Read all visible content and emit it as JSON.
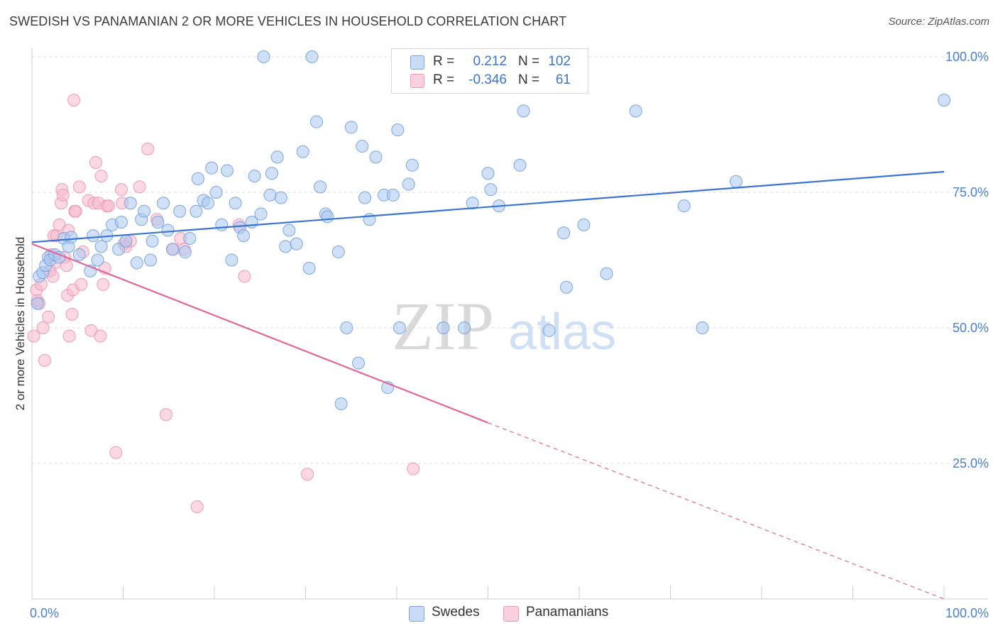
{
  "title": "SWEDISH VS PANAMANIAN 2 OR MORE VEHICLES IN HOUSEHOLD CORRELATION CHART",
  "source": "Source: ZipAtlas.com",
  "watermark": {
    "zip": "ZIP",
    "atlas": "atlas"
  },
  "legend": {
    "rows": [
      {
        "r_label": "R =",
        "r_value": "0.212",
        "n_label": "N =",
        "n_value": "102",
        "color": "#a9c8f0"
      },
      {
        "r_label": "R =",
        "r_value": "-0.346",
        "n_label": "N =",
        "n_value": "61",
        "color": "#f7b8cb"
      }
    ]
  },
  "bottom_legend": [
    {
      "label": "Swedes",
      "color": "#a9c8f0"
    },
    {
      "label": "Panamanians",
      "color": "#f7b8cb"
    }
  ],
  "colors": {
    "blue": "#3a74d0",
    "blue_fill": "#a9c8f0",
    "pink": "#e0679a",
    "pink_fill": "#f7b8cb",
    "grid": "#dddddd",
    "tick_text": "#4a7fd1"
  },
  "chart_data": {
    "type": "scatter",
    "title": "SWEDISH VS PANAMANIAN 2 OR MORE VEHICLES IN HOUSEHOLD CORRELATION CHART",
    "xlabel": "",
    "ylabel": "2 or more Vehicles in Household",
    "xlim": [
      0,
      100
    ],
    "ylim": [
      0,
      102
    ],
    "x_tick_labels": [
      "0.0%",
      "100.0%"
    ],
    "y_ticks": [
      25,
      50,
      75,
      100
    ],
    "y_tick_labels": [
      "25.0%",
      "50.0%",
      "75.0%",
      "100.0%"
    ],
    "grid": "horizontal dashed",
    "legend_position": "top-center",
    "series": [
      {
        "name": "Swedes",
        "r": 0.212,
        "n": 102,
        "trend": {
          "x": [
            0,
            100
          ],
          "y": [
            65.8,
            78.8
          ]
        },
        "points": [
          [
            0.6,
            54.5
          ],
          [
            0.8,
            59.5
          ],
          [
            1.2,
            60.2
          ],
          [
            1.5,
            61.5
          ],
          [
            1.8,
            63
          ],
          [
            2.0,
            62.5
          ],
          [
            2.5,
            63.5
          ],
          [
            3.0,
            63
          ],
          [
            3.5,
            66.5
          ],
          [
            4.0,
            65
          ],
          [
            4.3,
            66.7
          ],
          [
            5.2,
            63.5
          ],
          [
            6.4,
            60.5
          ],
          [
            6.7,
            67
          ],
          [
            7.2,
            62.5
          ],
          [
            7.6,
            65
          ],
          [
            8.2,
            67
          ],
          [
            8.8,
            69
          ],
          [
            9.5,
            64.5
          ],
          [
            9.8,
            69.5
          ],
          [
            10.3,
            66
          ],
          [
            10.8,
            73
          ],
          [
            11.5,
            62
          ],
          [
            12.0,
            70
          ],
          [
            12.3,
            71.5
          ],
          [
            13.0,
            62.5
          ],
          [
            13.2,
            66
          ],
          [
            13.8,
            69.5
          ],
          [
            14.4,
            73
          ],
          [
            14.9,
            68
          ],
          [
            15.4,
            64.5
          ],
          [
            16.2,
            71.5
          ],
          [
            16.8,
            64
          ],
          [
            17.3,
            66.5
          ],
          [
            18.0,
            71.5
          ],
          [
            18.2,
            77.5
          ],
          [
            18.8,
            73.5
          ],
          [
            19.3,
            73
          ],
          [
            19.7,
            79.5
          ],
          [
            20.2,
            75
          ],
          [
            20.8,
            69
          ],
          [
            21.4,
            79
          ],
          [
            21.9,
            62.5
          ],
          [
            22.3,
            73
          ],
          [
            22.8,
            68.5
          ],
          [
            23.2,
            67
          ],
          [
            24.1,
            69.5
          ],
          [
            24.4,
            78
          ],
          [
            25.1,
            71
          ],
          [
            25.4,
            100
          ],
          [
            26.1,
            74.5
          ],
          [
            26.3,
            78.5
          ],
          [
            26.9,
            81.5
          ],
          [
            27.3,
            74
          ],
          [
            27.8,
            65
          ],
          [
            28.2,
            68
          ],
          [
            29.0,
            65.5
          ],
          [
            29.7,
            82.5
          ],
          [
            30.4,
            61
          ],
          [
            30.7,
            100
          ],
          [
            31.2,
            88
          ],
          [
            31.6,
            76
          ],
          [
            32.2,
            71
          ],
          [
            32.4,
            70.5
          ],
          [
            33.6,
            64
          ],
          [
            33.9,
            36
          ],
          [
            34.5,
            50
          ],
          [
            35.0,
            87
          ],
          [
            35.8,
            43.5
          ],
          [
            36.2,
            83.5
          ],
          [
            36.5,
            74
          ],
          [
            37.0,
            70
          ],
          [
            37.7,
            81.5
          ],
          [
            38.6,
            74.5
          ],
          [
            39.0,
            39
          ],
          [
            39.6,
            74.5
          ],
          [
            40.1,
            86.5
          ],
          [
            40.3,
            50
          ],
          [
            41.3,
            76.5
          ],
          [
            41.7,
            80
          ],
          [
            42.6,
            94.5
          ],
          [
            45.1,
            50
          ],
          [
            47.4,
            50
          ],
          [
            48.3,
            73
          ],
          [
            50.0,
            78.5
          ],
          [
            50.3,
            75.5
          ],
          [
            51.2,
            72.5
          ],
          [
            53.5,
            80
          ],
          [
            53.9,
            90
          ],
          [
            56.5,
            100
          ],
          [
            56.7,
            49.5
          ],
          [
            58.3,
            67.5
          ],
          [
            58.6,
            57.5
          ],
          [
            60.5,
            69
          ],
          [
            63.0,
            60
          ],
          [
            66.2,
            90
          ],
          [
            71.5,
            72.5
          ],
          [
            73.5,
            50
          ],
          [
            77.2,
            77
          ],
          [
            100.0,
            92
          ]
        ]
      },
      {
        "name": "Panamanians",
        "r": -0.346,
        "n": 61,
        "trend": {
          "x": [
            0,
            50
          ],
          "y": [
            65.5,
            32.5
          ]
        },
        "trend_dashed": {
          "x": [
            50,
            100
          ],
          "y": [
            32.5,
            0
          ]
        },
        "points": [
          [
            0.2,
            48.5
          ],
          [
            0.5,
            57
          ],
          [
            0.6,
            55
          ],
          [
            0.8,
            54.5
          ],
          [
            1.0,
            58
          ],
          [
            1.2,
            50
          ],
          [
            1.4,
            44
          ],
          [
            1.8,
            52
          ],
          [
            2.0,
            60.5
          ],
          [
            2.1,
            63.5
          ],
          [
            2.3,
            59.5
          ],
          [
            2.4,
            67
          ],
          [
            2.6,
            62
          ],
          [
            2.7,
            67
          ],
          [
            3.0,
            69
          ],
          [
            3.2,
            73
          ],
          [
            3.3,
            75.5
          ],
          [
            3.4,
            74.5
          ],
          [
            3.6,
            63
          ],
          [
            3.8,
            61.5
          ],
          [
            3.9,
            56
          ],
          [
            4.0,
            68
          ],
          [
            4.1,
            48.5
          ],
          [
            4.4,
            52.5
          ],
          [
            4.5,
            57
          ],
          [
            4.6,
            92
          ],
          [
            4.7,
            71.5
          ],
          [
            4.8,
            71.5
          ],
          [
            5.2,
            76
          ],
          [
            5.4,
            58
          ],
          [
            5.6,
            64
          ],
          [
            6.2,
            73.5
          ],
          [
            6.5,
            49.5
          ],
          [
            6.8,
            73
          ],
          [
            7.0,
            80.5
          ],
          [
            7.3,
            73
          ],
          [
            7.5,
            48.5
          ],
          [
            7.6,
            78
          ],
          [
            7.8,
            58
          ],
          [
            8.0,
            61
          ],
          [
            8.2,
            72.5
          ],
          [
            8.4,
            72.5
          ],
          [
            9.2,
            27
          ],
          [
            9.8,
            75.5
          ],
          [
            9.9,
            73
          ],
          [
            10.1,
            65.5
          ],
          [
            10.3,
            65
          ],
          [
            10.8,
            66
          ],
          [
            11.8,
            76
          ],
          [
            12.7,
            83
          ],
          [
            13.7,
            70
          ],
          [
            14.7,
            34
          ],
          [
            15.5,
            64.5
          ],
          [
            16.3,
            66.5
          ],
          [
            16.7,
            64.5
          ],
          [
            18.1,
            17
          ],
          [
            22.7,
            69
          ],
          [
            23.3,
            59.5
          ],
          [
            30.2,
            23
          ],
          [
            41.8,
            24
          ]
        ]
      }
    ]
  }
}
